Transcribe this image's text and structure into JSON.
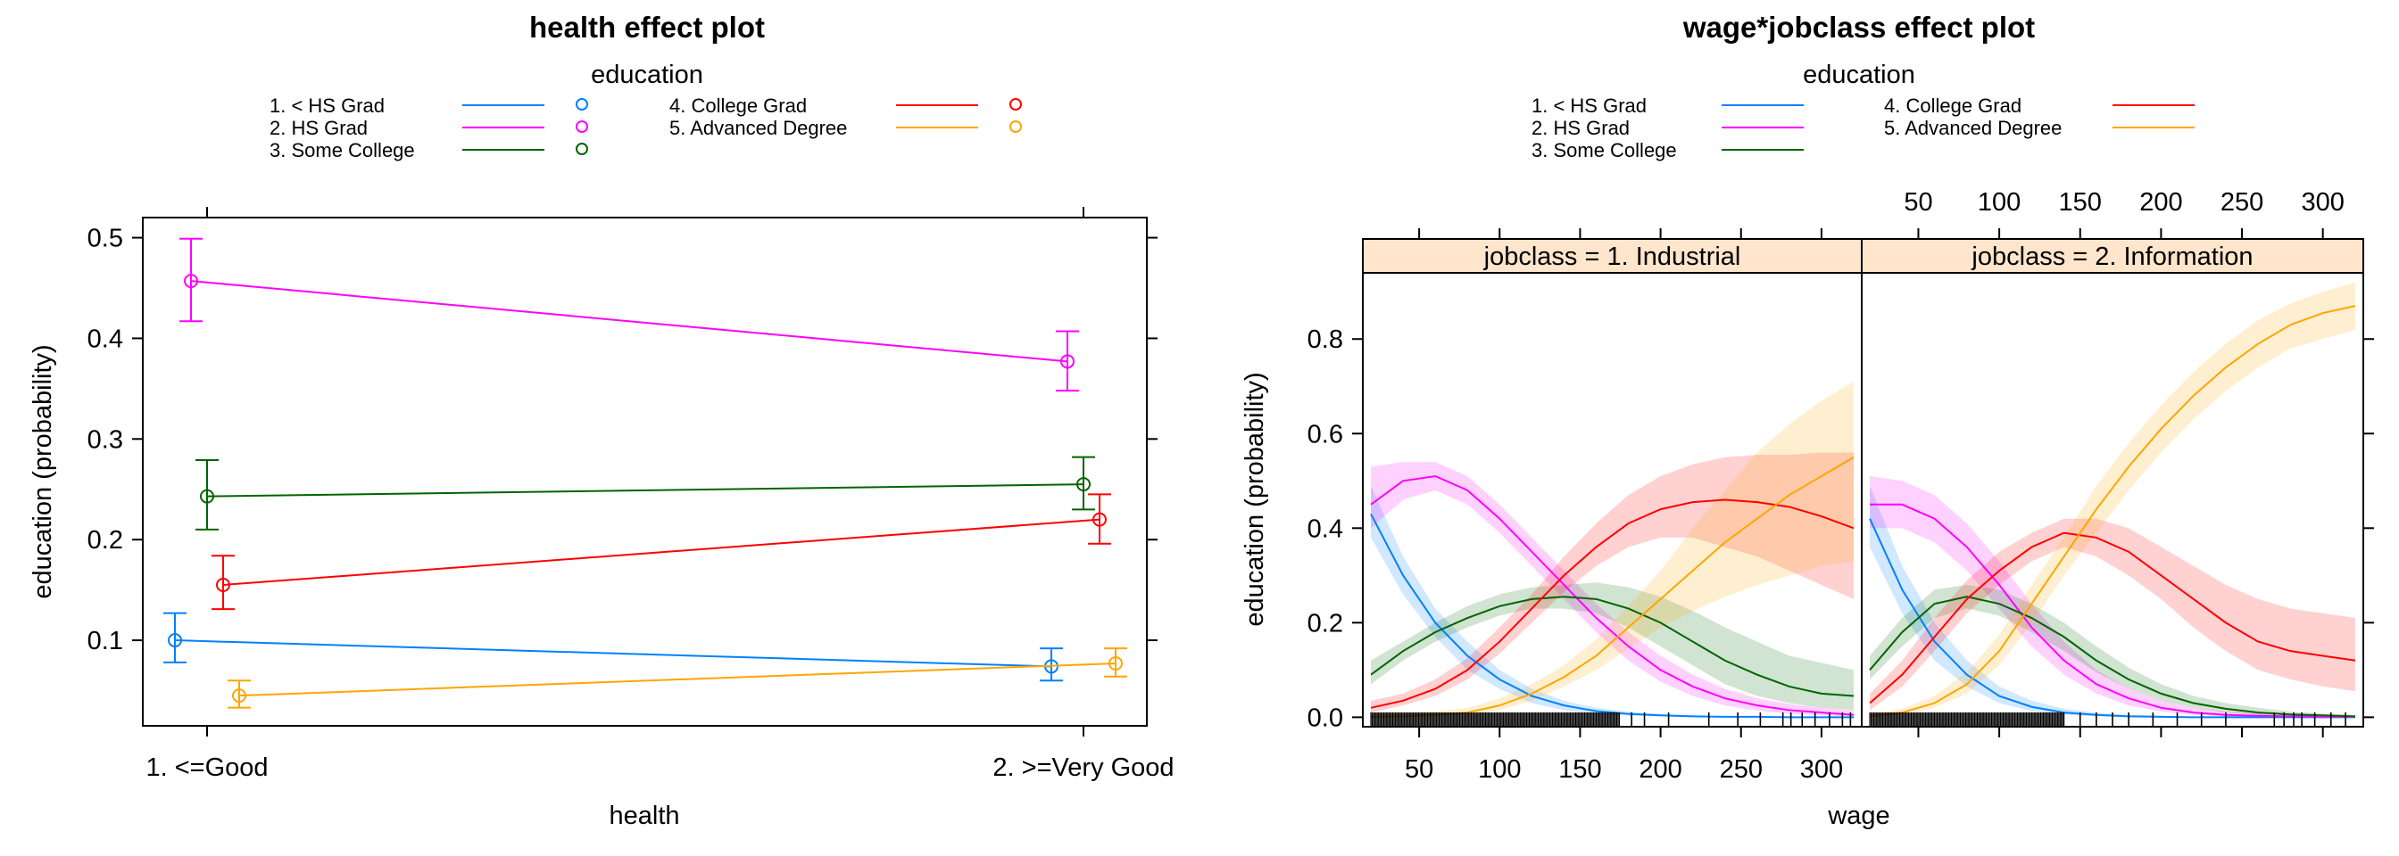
{
  "palette": {
    "1. < HS Grad": "#0080FF",
    "2. HS Grad": "#FF00FF",
    "3. Some College": "#006400",
    "4. College Grad": "#FF0000",
    "5. Advanced Degree": "#FFA500"
  },
  "chart_data": [
    {
      "type": "line",
      "title": "health effect plot",
      "legend_title": "education",
      "legend_placement": "top",
      "xlabel": "health",
      "ylabel": "education (probability)",
      "categories": [
        "1. <=Good",
        "2. >=Very Good"
      ],
      "ylim": [
        0.015,
        0.52
      ],
      "yticks": [
        0.1,
        0.2,
        0.3,
        0.4,
        0.5
      ],
      "ytick_labels": [
        "0.1",
        "0.2",
        "0.3",
        "0.4",
        "0.5"
      ],
      "series": [
        {
          "name": "1. < HS Grad",
          "values": [
            0.1,
            0.074
          ],
          "lower": [
            0.078,
            0.06
          ],
          "upper": [
            0.127,
            0.092
          ]
        },
        {
          "name": "2. HS Grad",
          "values": [
            0.457,
            0.377
          ],
          "lower": [
            0.417,
            0.348
          ],
          "upper": [
            0.499,
            0.407
          ]
        },
        {
          "name": "3. Some College",
          "values": [
            0.243,
            0.255
          ],
          "lower": [
            0.21,
            0.23
          ],
          "upper": [
            0.279,
            0.282
          ]
        },
        {
          "name": "4. College Grad",
          "values": [
            0.155,
            0.22
          ],
          "lower": [
            0.131,
            0.196
          ],
          "upper": [
            0.184,
            0.245
          ]
        },
        {
          "name": "5. Advanced Degree",
          "values": [
            0.045,
            0.077
          ],
          "lower": [
            0.033,
            0.064
          ],
          "upper": [
            0.06,
            0.092
          ]
        }
      ]
    },
    {
      "type": "area",
      "title": "wage*jobclass effect plot",
      "legend_title": "education",
      "legend_placement": "top",
      "xlabel": "wage",
      "ylabel": "education (probability)",
      "xlim": [
        15,
        325
      ],
      "ylim": [
        -0.02,
        0.94
      ],
      "xticks": [
        50,
        100,
        150,
        200,
        250,
        300
      ],
      "xtick_labels": [
        "50",
        "100",
        "150",
        "200",
        "250",
        "300"
      ],
      "yticks": [
        0.0,
        0.2,
        0.4,
        0.6,
        0.8
      ],
      "ytick_labels": [
        "0.0",
        "0.2",
        "0.4",
        "0.6",
        "0.8"
      ],
      "x": [
        20,
        40,
        60,
        80,
        100,
        120,
        140,
        160,
        180,
        200,
        220,
        240,
        260,
        280,
        300,
        320
      ],
      "panels": [
        {
          "strip": "jobclass = 1. Industrial",
          "series": [
            {
              "name": "1. < HS Grad",
              "values": [
                0.43,
                0.3,
                0.2,
                0.13,
                0.08,
                0.045,
                0.025,
                0.013,
                0.007,
                0.004,
                0.002,
                0.001,
                0.001,
                0.0,
                0.0,
                0.0
              ],
              "lower": [
                0.38,
                0.26,
                0.17,
                0.1,
                0.06,
                0.03,
                0.015,
                0.007,
                0.003,
                0.002,
                0.001,
                0.0,
                0.0,
                0.0,
                0.0,
                0.0
              ],
              "upper": [
                0.49,
                0.34,
                0.23,
                0.16,
                0.1,
                0.06,
                0.035,
                0.02,
                0.012,
                0.007,
                0.004,
                0.002,
                0.001,
                0.001,
                0.0,
                0.0
              ]
            },
            {
              "name": "2. HS Grad",
              "values": [
                0.45,
                0.5,
                0.51,
                0.48,
                0.42,
                0.35,
                0.28,
                0.21,
                0.15,
                0.1,
                0.065,
                0.04,
                0.025,
                0.015,
                0.01,
                0.005
              ],
              "lower": [
                0.4,
                0.46,
                0.48,
                0.45,
                0.39,
                0.32,
                0.25,
                0.18,
                0.12,
                0.075,
                0.045,
                0.025,
                0.014,
                0.007,
                0.004,
                0.002
              ],
              "upper": [
                0.53,
                0.54,
                0.54,
                0.51,
                0.45,
                0.38,
                0.31,
                0.24,
                0.18,
                0.13,
                0.09,
                0.06,
                0.04,
                0.028,
                0.02,
                0.014
              ]
            },
            {
              "name": "3. Some College",
              "values": [
                0.09,
                0.14,
                0.18,
                0.21,
                0.235,
                0.25,
                0.255,
                0.25,
                0.23,
                0.2,
                0.16,
                0.12,
                0.09,
                0.065,
                0.05,
                0.045
              ],
              "lower": [
                0.07,
                0.12,
                0.16,
                0.19,
                0.215,
                0.23,
                0.23,
                0.22,
                0.19,
                0.15,
                0.11,
                0.07,
                0.045,
                0.03,
                0.02,
                0.015
              ],
              "upper": [
                0.12,
                0.16,
                0.2,
                0.235,
                0.26,
                0.275,
                0.28,
                0.285,
                0.275,
                0.255,
                0.225,
                0.19,
                0.16,
                0.13,
                0.115,
                0.1
              ]
            },
            {
              "name": "4. College Grad",
              "values": [
                0.02,
                0.035,
                0.06,
                0.1,
                0.16,
                0.23,
                0.3,
                0.36,
                0.41,
                0.44,
                0.455,
                0.46,
                0.455,
                0.445,
                0.425,
                0.4
              ],
              "lower": [
                0.01,
                0.025,
                0.045,
                0.08,
                0.135,
                0.2,
                0.265,
                0.32,
                0.36,
                0.38,
                0.38,
                0.36,
                0.34,
                0.31,
                0.28,
                0.25
              ],
              "upper": [
                0.035,
                0.05,
                0.08,
                0.125,
                0.19,
                0.26,
                0.34,
                0.41,
                0.47,
                0.51,
                0.535,
                0.55,
                0.555,
                0.555,
                0.56,
                0.56
              ]
            },
            {
              "name": "5. Advanced Degree",
              "values": [
                0.001,
                0.002,
                0.005,
                0.01,
                0.025,
                0.05,
                0.085,
                0.13,
                0.19,
                0.25,
                0.31,
                0.37,
                0.42,
                0.47,
                0.51,
                0.55
              ],
              "lower": [
                0.0,
                0.001,
                0.002,
                0.005,
                0.015,
                0.035,
                0.065,
                0.1,
                0.145,
                0.19,
                0.225,
                0.255,
                0.28,
                0.3,
                0.32,
                0.33
              ],
              "upper": [
                0.005,
                0.008,
                0.012,
                0.02,
                0.04,
                0.07,
                0.11,
                0.165,
                0.235,
                0.31,
                0.4,
                0.48,
                0.56,
                0.62,
                0.67,
                0.71
              ]
            }
          ]
        },
        {
          "strip": "jobclass = 2. Information",
          "series": [
            {
              "name": "1. < HS Grad",
              "values": [
                0.42,
                0.27,
                0.16,
                0.09,
                0.045,
                0.022,
                0.01,
                0.005,
                0.002,
                0.001,
                0.0,
                0.0,
                0.0,
                0.0,
                0.0,
                0.0
              ],
              "lower": [
                0.36,
                0.22,
                0.12,
                0.065,
                0.03,
                0.013,
                0.005,
                0.002,
                0.001,
                0.0,
                0.0,
                0.0,
                0.0,
                0.0,
                0.0,
                0.0
              ],
              "upper": [
                0.49,
                0.32,
                0.2,
                0.12,
                0.065,
                0.035,
                0.018,
                0.01,
                0.005,
                0.003,
                0.001,
                0.001,
                0.0,
                0.0,
                0.0,
                0.0
              ]
            },
            {
              "name": "2. HS Grad",
              "values": [
                0.45,
                0.45,
                0.42,
                0.36,
                0.28,
                0.19,
                0.12,
                0.07,
                0.04,
                0.02,
                0.01,
                0.005,
                0.003,
                0.002,
                0.001,
                0.001
              ],
              "lower": [
                0.4,
                0.4,
                0.37,
                0.31,
                0.23,
                0.15,
                0.09,
                0.05,
                0.025,
                0.012,
                0.005,
                0.002,
                0.001,
                0.0,
                0.0,
                0.0
              ],
              "upper": [
                0.51,
                0.5,
                0.47,
                0.41,
                0.33,
                0.24,
                0.16,
                0.1,
                0.06,
                0.035,
                0.02,
                0.012,
                0.008,
                0.005,
                0.004,
                0.003
              ]
            },
            {
              "name": "3. Some College",
              "values": [
                0.1,
                0.18,
                0.24,
                0.255,
                0.24,
                0.21,
                0.17,
                0.12,
                0.08,
                0.05,
                0.03,
                0.018,
                0.01,
                0.006,
                0.004,
                0.002
              ],
              "lower": [
                0.08,
                0.15,
                0.21,
                0.23,
                0.215,
                0.18,
                0.14,
                0.095,
                0.06,
                0.035,
                0.02,
                0.01,
                0.005,
                0.003,
                0.002,
                0.001
              ],
              "upper": [
                0.13,
                0.21,
                0.27,
                0.28,
                0.27,
                0.24,
                0.2,
                0.15,
                0.105,
                0.07,
                0.045,
                0.03,
                0.02,
                0.012,
                0.008,
                0.005
              ]
            },
            {
              "name": "4. College Grad",
              "values": [
                0.03,
                0.09,
                0.17,
                0.25,
                0.31,
                0.36,
                0.39,
                0.38,
                0.35,
                0.3,
                0.25,
                0.2,
                0.16,
                0.14,
                0.13,
                0.12
              ],
              "lower": [
                0.015,
                0.065,
                0.14,
                0.22,
                0.28,
                0.33,
                0.36,
                0.34,
                0.3,
                0.25,
                0.19,
                0.14,
                0.1,
                0.08,
                0.065,
                0.055
              ],
              "upper": [
                0.05,
                0.12,
                0.21,
                0.29,
                0.35,
                0.39,
                0.42,
                0.42,
                0.4,
                0.36,
                0.32,
                0.28,
                0.25,
                0.23,
                0.22,
                0.21
              ]
            },
            {
              "name": "5. Advanced Degree",
              "values": [
                0.002,
                0.01,
                0.03,
                0.07,
                0.14,
                0.24,
                0.34,
                0.44,
                0.53,
                0.61,
                0.68,
                0.74,
                0.79,
                0.83,
                0.855,
                0.87
              ],
              "lower": [
                0.001,
                0.005,
                0.02,
                0.05,
                0.11,
                0.2,
                0.3,
                0.39,
                0.48,
                0.56,
                0.63,
                0.69,
                0.74,
                0.78,
                0.8,
                0.82
              ],
              "upper": [
                0.006,
                0.018,
                0.045,
                0.095,
                0.175,
                0.28,
                0.38,
                0.49,
                0.58,
                0.66,
                0.73,
                0.79,
                0.84,
                0.875,
                0.9,
                0.92
              ]
            }
          ]
        }
      ]
    }
  ]
}
